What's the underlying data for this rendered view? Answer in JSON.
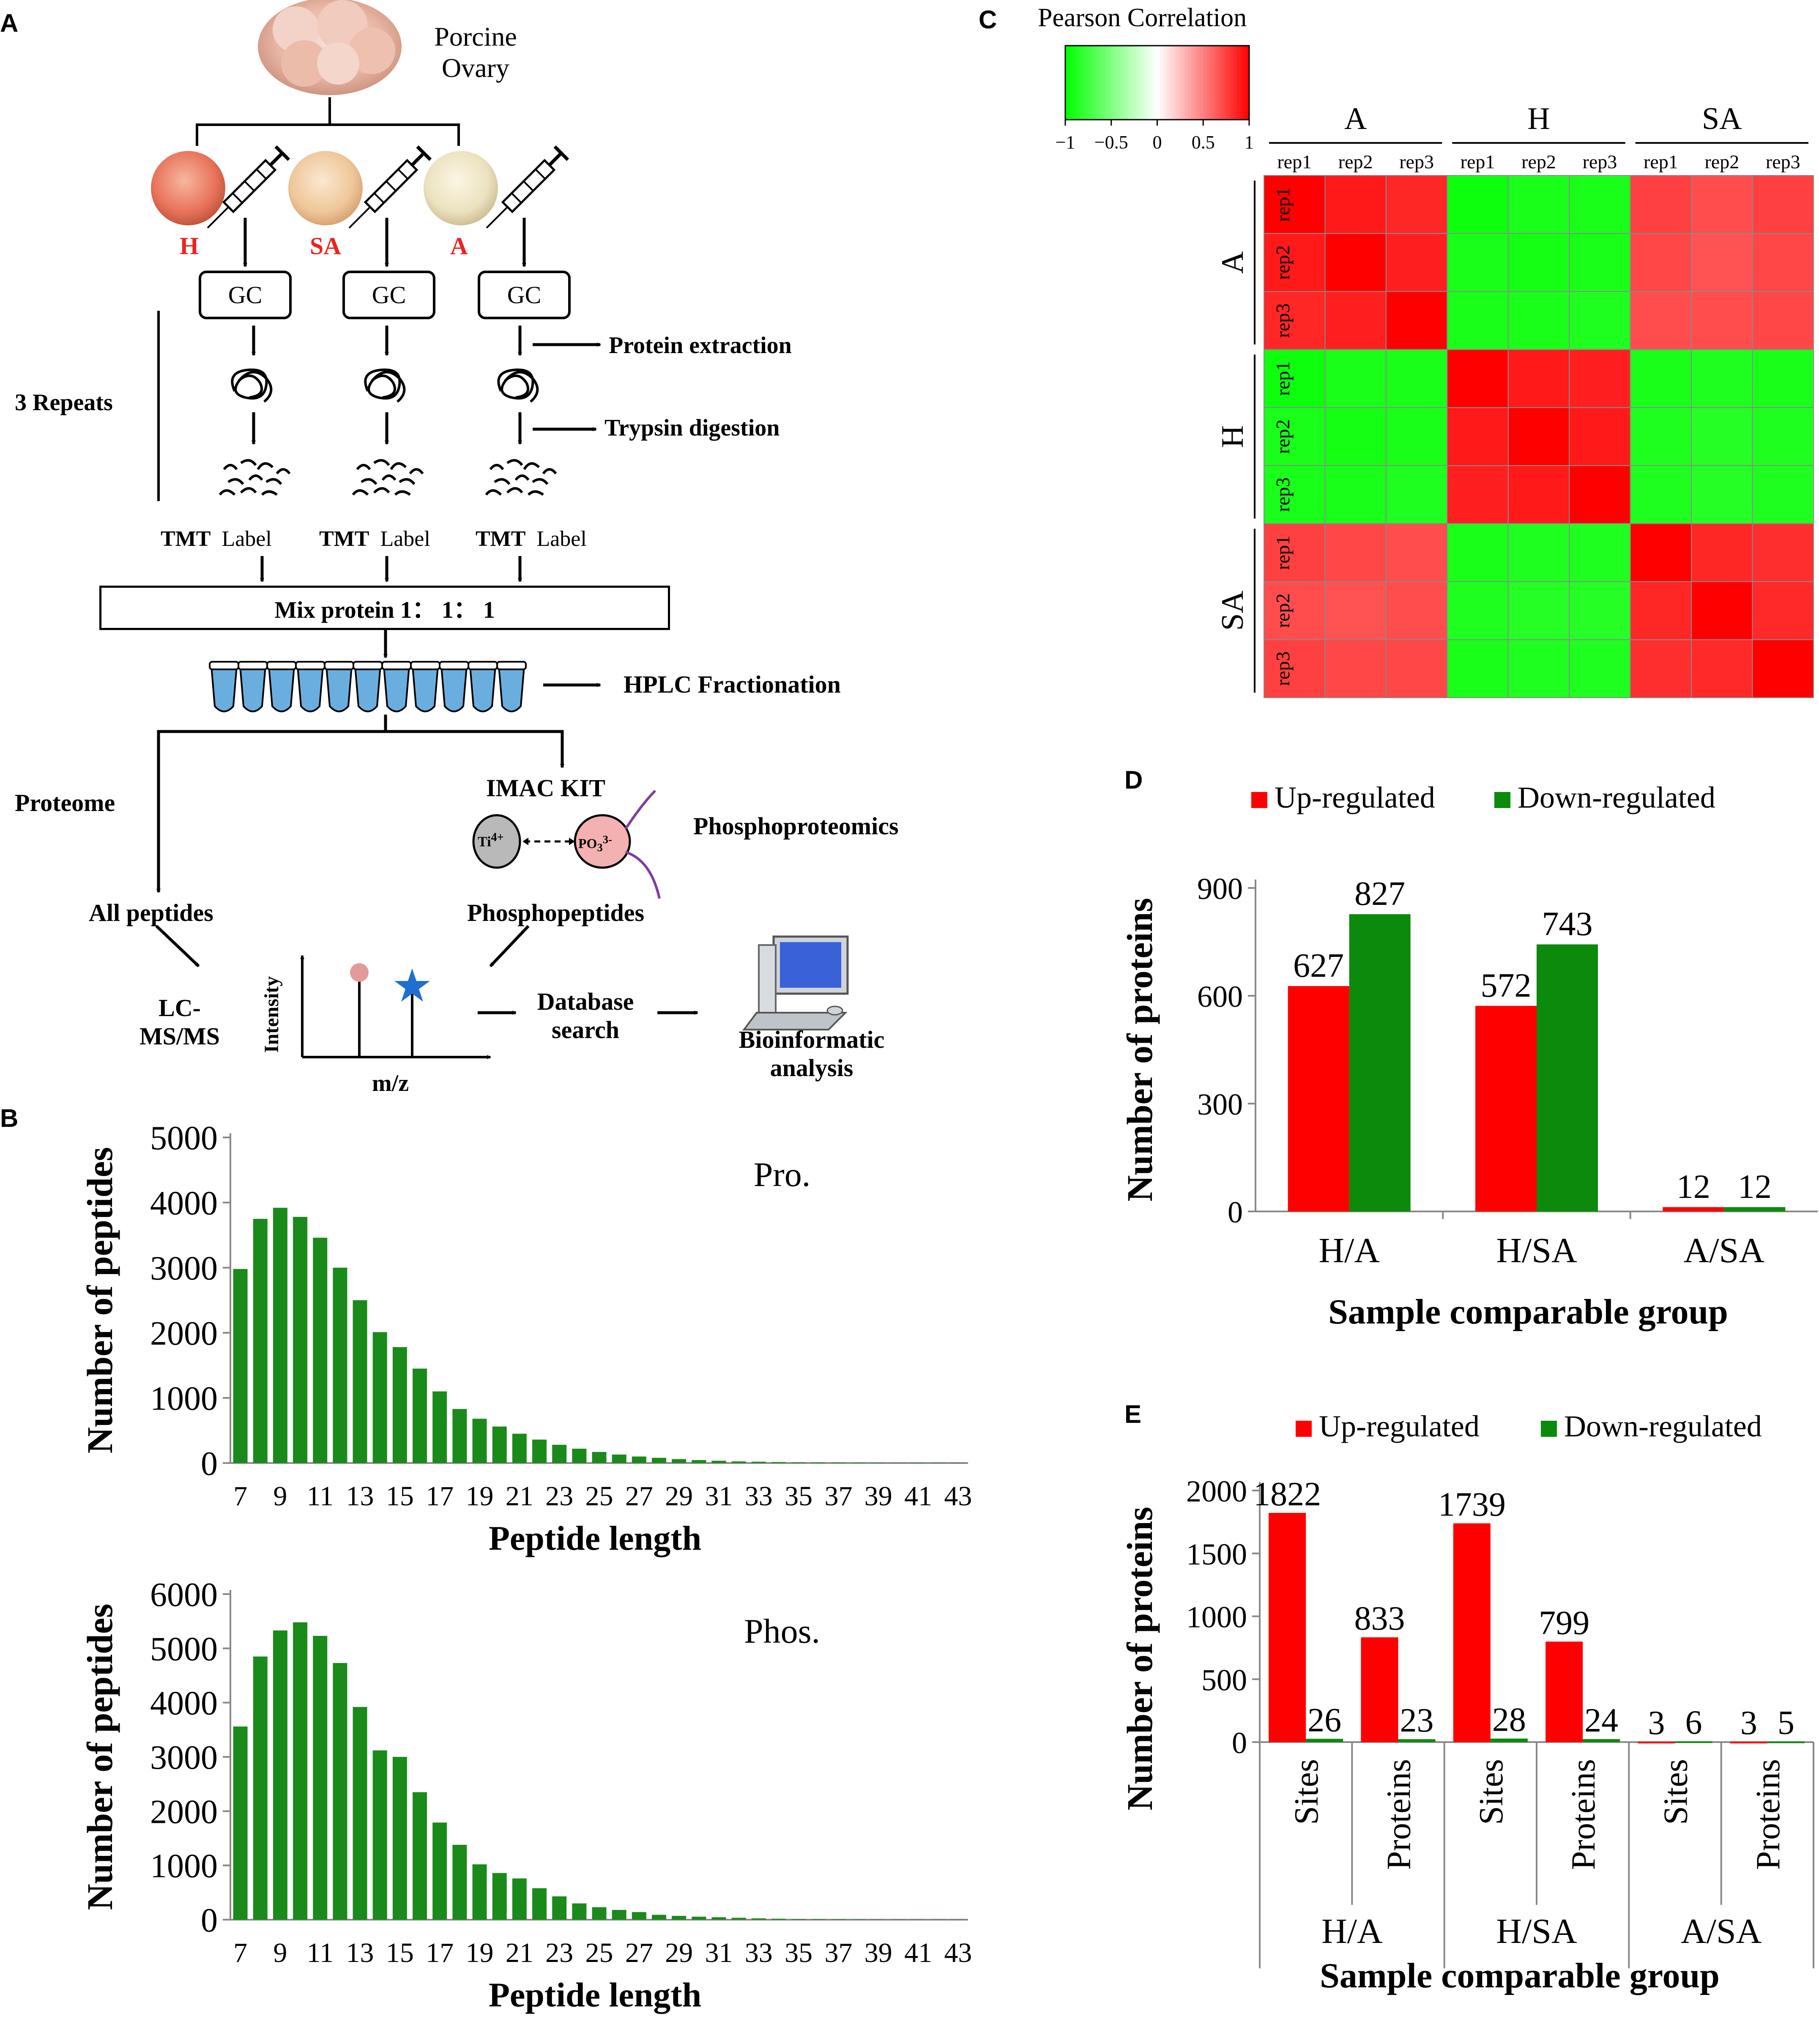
{
  "panel_labels": {
    "a": "A",
    "b": "B",
    "c": "C",
    "d": "D",
    "e": "E"
  },
  "workflow": {
    "ovary_title_1": "Porcine",
    "ovary_title_2": "Ovary",
    "groups": [
      {
        "name": "H",
        "color": "#e8251f"
      },
      {
        "name": "SA",
        "color": "#e8251f"
      },
      {
        "name": "A",
        "color": "#e8251f"
      }
    ],
    "gc_label": "GC",
    "repeats": "3 Repeats",
    "protein_extraction": "Protein extraction",
    "trypsin_digestion": "Trypsin digestion",
    "tmt": "TMT",
    "label": "Label",
    "mix": "Mix protein 1： 1： 1",
    "hplc": "HPLC Fractionation",
    "proteome": "Proteome",
    "imac": "IMAC KIT",
    "ti": "Ti",
    "ti_sup": "4+",
    "po": "PO",
    "po_sub": "3",
    "po_sup": "3-",
    "phosphoproteomics": "Phosphoproteomics",
    "all_peptides": "All peptides",
    "phosphopeptides": "Phosphopeptides",
    "lcms_1": "LC-",
    "lcms_2": "MS/MS",
    "intensity": "Intensity",
    "mz": "m/z",
    "database_1": "Database",
    "database_2": "search",
    "bio_1": "Bioinformatic",
    "bio_2": "analysis"
  },
  "chart_data": [
    {
      "id": "B-top",
      "type": "bar",
      "title": "Pro.",
      "xlabel": "Peptide length",
      "ylabel": "Number of peptides",
      "ylim": [
        0,
        5000
      ],
      "yticks": [
        "0",
        "1000",
        "2000",
        "3000",
        "4000",
        "5000"
      ],
      "categories": [
        7,
        8,
        9,
        10,
        11,
        12,
        13,
        14,
        15,
        16,
        17,
        18,
        19,
        20,
        21,
        22,
        23,
        24,
        25,
        26,
        27,
        28,
        29,
        30,
        31,
        32,
        33,
        34,
        35,
        36,
        37,
        38,
        39,
        40,
        41,
        42,
        43
      ],
      "xtick_labels": [
        "7",
        "9",
        "11",
        "13",
        "15",
        "17",
        "19",
        "21",
        "23",
        "25",
        "27",
        "29",
        "31",
        "33",
        "35",
        "37",
        "39",
        "41",
        "43"
      ],
      "values": [
        2980,
        3750,
        3920,
        3780,
        3460,
        3000,
        2500,
        2010,
        1780,
        1450,
        1100,
        830,
        680,
        560,
        450,
        360,
        280,
        220,
        170,
        130,
        100,
        80,
        60,
        45,
        35,
        25,
        20,
        15,
        12,
        9,
        7,
        5,
        4,
        3,
        2,
        2,
        1
      ],
      "color": "#1a8a1a"
    },
    {
      "id": "B-bottom",
      "type": "bar",
      "title": "Phos.",
      "xlabel": "Peptide length",
      "ylabel": "Number of peptides",
      "ylim": [
        0,
        6000
      ],
      "yticks": [
        "0",
        "1000",
        "2000",
        "3000",
        "4000",
        "5000",
        "6000"
      ],
      "categories": [
        7,
        8,
        9,
        10,
        11,
        12,
        13,
        14,
        15,
        16,
        17,
        18,
        19,
        20,
        21,
        22,
        23,
        24,
        25,
        26,
        27,
        28,
        29,
        30,
        31,
        32,
        33,
        34,
        35,
        36,
        37,
        38,
        39,
        40,
        41,
        42,
        43
      ],
      "xtick_labels": [
        "7",
        "9",
        "11",
        "13",
        "15",
        "17",
        "19",
        "21",
        "23",
        "25",
        "27",
        "29",
        "31",
        "33",
        "35",
        "37",
        "39",
        "41",
        "43"
      ],
      "values": [
        3560,
        4850,
        5330,
        5480,
        5230,
        4730,
        3920,
        3120,
        3000,
        2350,
        1790,
        1380,
        1020,
        860,
        760,
        580,
        430,
        300,
        230,
        180,
        140,
        90,
        70,
        55,
        45,
        35,
        25,
        18,
        12,
        9,
        7,
        5,
        4,
        3,
        2,
        2,
        1
      ],
      "color": "#1a8a1a"
    },
    {
      "id": "C",
      "type": "heatmap",
      "title": "Pearson Correlation",
      "colorbar_ticks": [
        "−1",
        "−0.5",
        "0",
        "0.5",
        "1"
      ],
      "groups": [
        "A",
        "H",
        "SA"
      ],
      "reps": [
        "rep1",
        "rep2",
        "rep3"
      ],
      "matrix": [
        [
          1.0,
          0.9,
          0.85,
          -0.95,
          -0.9,
          -0.9,
          0.75,
          0.7,
          0.75
        ],
        [
          0.9,
          1.0,
          0.88,
          -0.9,
          -0.92,
          -0.9,
          0.72,
          0.68,
          0.72
        ],
        [
          0.85,
          0.88,
          1.0,
          -0.9,
          -0.9,
          -0.88,
          0.7,
          0.7,
          0.72
        ],
        [
          -0.95,
          -0.9,
          -0.9,
          1.0,
          0.9,
          0.88,
          -0.9,
          -0.88,
          -0.9
        ],
        [
          -0.9,
          -0.92,
          -0.9,
          0.9,
          1.0,
          0.9,
          -0.88,
          -0.85,
          -0.88
        ],
        [
          -0.9,
          -0.9,
          -0.88,
          0.88,
          0.9,
          1.0,
          -0.88,
          -0.85,
          -0.88
        ],
        [
          0.75,
          0.72,
          0.7,
          -0.9,
          -0.88,
          -0.88,
          1.0,
          0.85,
          0.82
        ],
        [
          0.7,
          0.68,
          0.7,
          -0.88,
          -0.85,
          -0.85,
          0.85,
          1.0,
          0.84
        ],
        [
          0.75,
          0.72,
          0.72,
          -0.9,
          -0.88,
          -0.88,
          0.82,
          0.84,
          1.0
        ]
      ]
    },
    {
      "id": "D",
      "type": "bar",
      "xlabel": "Sample comparable group",
      "ylabel": "Number of proteins",
      "ylim": [
        0,
        900
      ],
      "yticks": [
        "0",
        "300",
        "600",
        "900"
      ],
      "categories": [
        "H/A",
        "H/SA",
        "A/SA"
      ],
      "series": [
        {
          "name": "Up-regulated",
          "color": "#ff0000",
          "values": [
            627,
            572,
            12
          ],
          "labels": [
            "627",
            "572",
            "12"
          ]
        },
        {
          "name": "Down-regulated",
          "color": "#0b8a0b",
          "values": [
            827,
            743,
            12
          ],
          "labels": [
            "827",
            "743",
            "12"
          ]
        }
      ]
    },
    {
      "id": "E",
      "type": "bar",
      "xlabel": "Sample comparable group",
      "ylabel": "Number of proteins",
      "ylim": [
        0,
        2000
      ],
      "yticks": [
        "0",
        "500",
        "1000",
        "1500",
        "2000"
      ],
      "groups": [
        "H/A",
        "H/SA",
        "A/SA"
      ],
      "subcategories": [
        "Sites",
        "Proteins"
      ],
      "series": [
        {
          "name": "Up-regulated",
          "color": "#ff0000",
          "values": [
            1822,
            833,
            1739,
            799,
            3,
            3
          ],
          "labels": [
            "1822",
            "833",
            "1739",
            "799",
            "3",
            "3"
          ]
        },
        {
          "name": "Down-regulated",
          "color": "#0b8a0b",
          "values": [
            26,
            23,
            28,
            24,
            6,
            5
          ],
          "labels": [
            "26",
            "23",
            "28",
            "24",
            "6",
            "5"
          ]
        }
      ]
    }
  ]
}
